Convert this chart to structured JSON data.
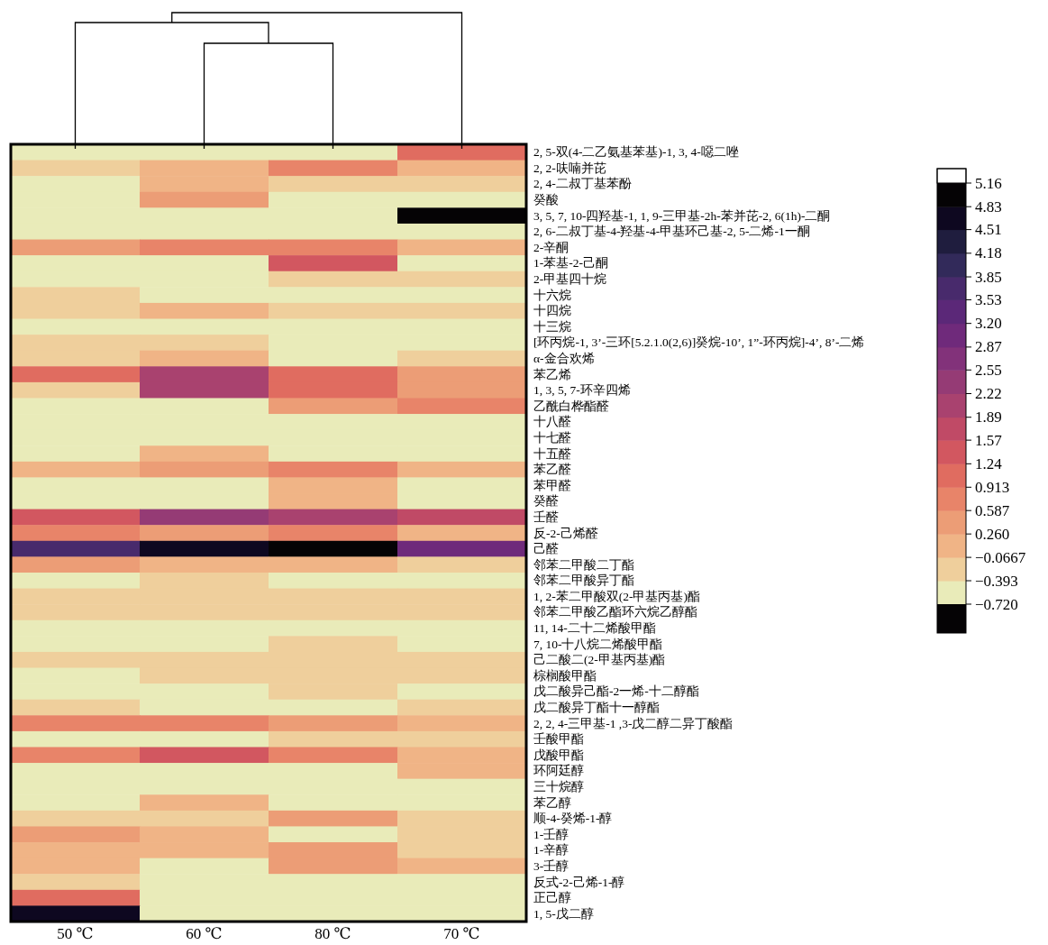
{
  "chart_data": {
    "type": "heatmap",
    "categories": [
      "50 ℃",
      "60 ℃",
      "80 ℃",
      "70 ℃"
    ],
    "y_categories": [
      "2, 5-双(4-二乙氨基苯基)-1, 3, 4-噁二唑",
      "2, 2-呋喃并芘",
      "2, 4-二叔丁基苯酚",
      "癸酸",
      "3, 5, 7, 10-四羟基-1, 1, 9-三甲基-2h-苯并芘-2, 6(1h)-二酮",
      "2, 6-二叔丁基-4-羟基-4-甲基环己基-2, 5-二烯-1一酮",
      "2-辛酮",
      "1-苯基-2-己酮",
      "2-甲基四十烷",
      "十六烷",
      "十四烷",
      "十三烷",
      "[环丙烷-1, 3’-三环[5.2.1.0(2,6)]癸烷-10’, 1”-环丙烷]-4’, 8’-二烯",
      "α-金合欢烯",
      "苯乙烯",
      "1, 3, 5, 7-环辛四烯",
      "乙酰白桦酯醛",
      "十八醛",
      "十七醛",
      "十五醛",
      "苯乙醛",
      "苯甲醛",
      "癸醛",
      "壬醛",
      "反-2-己烯醛",
      "己醛",
      "邻苯二甲酸二丁酯",
      "邻苯二甲酸异丁酯",
      "1, 2-苯二甲酸双(2-甲基丙基)酯",
      "邻苯二甲酸乙酯环六烷乙醇酯",
      "11, 14-二十二烯酸甲酯",
      "7, 10-十八烷二烯酸甲酯",
      "己二酸二(2-甲基丙基)酯",
      "棕榈酸甲酯",
      "戊二酸异己酯-2一烯-十二醇酯",
      "戊二酸异丁酯十一醇酯",
      "2, 2, 4-三甲基-1 ,3-戊二醇二异丁酸酯",
      "壬酸甲酯",
      "戊酸甲酯",
      "环阿廷醇",
      "三十烷醇",
      "苯乙醇",
      "顺-4-癸烯-1-醇",
      "1-壬醇",
      "1-辛醇",
      "3-壬醇",
      "反式-2-己烯-1-醇",
      "正己醇",
      "1, 5-戊二醇"
    ],
    "cells": [
      [
        -0.56,
        -0.56,
        -0.56,
        1.08
      ],
      [
        -0.23,
        0.1,
        0.75,
        0.1
      ],
      [
        -0.56,
        0.1,
        -0.23,
        -0.23
      ],
      [
        -0.56,
        0.42,
        -0.56,
        -0.56
      ],
      [
        -0.56,
        -0.56,
        -0.56,
        5.0
      ],
      [
        -0.56,
        -0.56,
        -0.56,
        -0.56
      ],
      [
        0.42,
        0.75,
        0.75,
        0.1
      ],
      [
        -0.56,
        -0.56,
        1.4,
        -0.56
      ],
      [
        -0.56,
        -0.56,
        -0.23,
        -0.23
      ],
      [
        -0.23,
        -0.56,
        -0.56,
        -0.56
      ],
      [
        -0.23,
        0.1,
        -0.23,
        -0.23
      ],
      [
        -0.56,
        -0.56,
        -0.56,
        -0.56
      ],
      [
        -0.23,
        -0.23,
        -0.56,
        -0.56
      ],
      [
        -0.23,
        0.1,
        -0.56,
        -0.23
      ],
      [
        1.08,
        2.05,
        1.08,
        0.42
      ],
      [
        -0.23,
        2.05,
        1.08,
        0.42
      ],
      [
        -0.56,
        -0.56,
        0.42,
        0.75
      ],
      [
        -0.56,
        -0.56,
        -0.56,
        -0.56
      ],
      [
        -0.56,
        -0.56,
        -0.56,
        -0.56
      ],
      [
        -0.56,
        0.1,
        -0.56,
        -0.56
      ],
      [
        0.1,
        0.42,
        0.75,
        0.1
      ],
      [
        -0.56,
        -0.56,
        0.1,
        -0.56
      ],
      [
        -0.56,
        -0.56,
        0.1,
        -0.56
      ],
      [
        1.4,
        2.38,
        2.05,
        1.73
      ],
      [
        0.75,
        0.42,
        0.75,
        0.1
      ],
      [
        3.69,
        4.67,
        5.0,
        3.03
      ],
      [
        0.42,
        0.1,
        0.1,
        -0.23
      ],
      [
        -0.56,
        -0.23,
        -0.56,
        -0.56
      ],
      [
        -0.23,
        -0.23,
        -0.23,
        -0.23
      ],
      [
        -0.23,
        -0.23,
        -0.23,
        -0.23
      ],
      [
        -0.56,
        -0.56,
        -0.56,
        -0.56
      ],
      [
        -0.56,
        -0.56,
        -0.23,
        -0.56
      ],
      [
        -0.23,
        -0.23,
        -0.23,
        -0.23
      ],
      [
        -0.56,
        -0.23,
        -0.23,
        -0.23
      ],
      [
        -0.56,
        -0.56,
        -0.23,
        -0.56
      ],
      [
        -0.23,
        -0.56,
        -0.56,
        -0.23
      ],
      [
        0.75,
        0.75,
        0.42,
        0.1
      ],
      [
        -0.56,
        -0.56,
        -0.23,
        -0.23
      ],
      [
        0.75,
        1.4,
        0.75,
        0.1
      ],
      [
        -0.56,
        -0.56,
        -0.56,
        0.1
      ],
      [
        -0.56,
        -0.56,
        -0.56,
        -0.56
      ],
      [
        -0.56,
        0.1,
        -0.56,
        -0.56
      ],
      [
        -0.23,
        -0.23,
        0.42,
        -0.23
      ],
      [
        0.42,
        0.1,
        -0.56,
        -0.23
      ],
      [
        0.1,
        0.1,
        0.42,
        -0.23
      ],
      [
        0.1,
        -0.56,
        0.42,
        0.1
      ],
      [
        -0.23,
        -0.56,
        -0.56,
        -0.56
      ],
      [
        1.08,
        -0.56,
        -0.56,
        -0.56
      ],
      [
        4.67,
        -0.56,
        -0.56,
        -0.56
      ]
    ],
    "clim": [
      -0.72,
      5.16
    ],
    "cticks": [
      {
        "value": -0.72,
        "label": "−0.720"
      },
      {
        "value": -0.393,
        "label": "−0.393"
      },
      {
        "value": -0.0667,
        "label": "−0.0667"
      },
      {
        "value": 0.26,
        "label": "0.260"
      },
      0.587,
      0.913,
      1.24,
      1.57,
      1.89,
      2.22,
      2.55,
      2.87,
      {
        "value": 3.2,
        "label": "3.20"
      },
      3.53,
      3.85,
      4.18,
      4.51,
      4.83,
      5.16
    ]
  }
}
